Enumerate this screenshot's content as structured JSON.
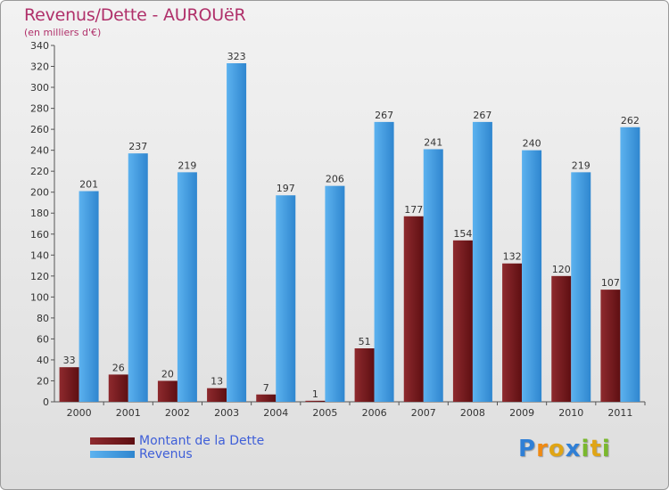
{
  "chart_data": {
    "type": "bar",
    "title": "Revenus/Dette - AUROUëR",
    "subtitle": "(en milliers d'€)",
    "categories": [
      "2000",
      "2001",
      "2002",
      "2003",
      "2004",
      "2005",
      "2006",
      "2007",
      "2008",
      "2009",
      "2010",
      "2011"
    ],
    "series": [
      {
        "name": "Montant de la Dette",
        "color": "#7a1a1e",
        "values": [
          33,
          26,
          20,
          13,
          7,
          1,
          51,
          177,
          154,
          132,
          120,
          107
        ]
      },
      {
        "name": "Revenus",
        "color": "#4aa3e6",
        "values": [
          201,
          237,
          219,
          323,
          197,
          206,
          267,
          241,
          267,
          240,
          219,
          262
        ]
      }
    ],
    "ylim": [
      0,
      340
    ],
    "yticks": [
      0,
      20,
      40,
      60,
      80,
      100,
      120,
      140,
      160,
      180,
      200,
      220,
      240,
      260,
      280,
      300,
      320,
      340
    ],
    "grid": false,
    "legend_position": "bottom-left"
  },
  "logo": {
    "letters": [
      "P",
      "r",
      "o",
      "x",
      "i",
      "t",
      "i"
    ],
    "colors": [
      "#2f7fd6",
      "#f08a12",
      "#e0a515",
      "#2f7fd6",
      "#7ab82d",
      "#e0a515",
      "#7ab82d"
    ]
  }
}
